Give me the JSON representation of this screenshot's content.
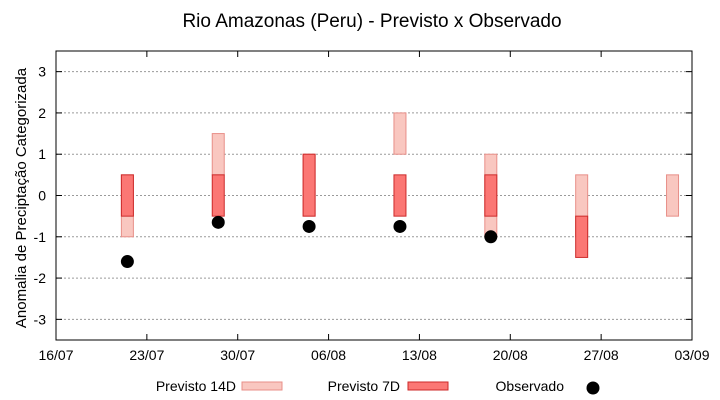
{
  "chart_data": {
    "type": "bar",
    "title": "Rio Amazonas (Peru) - Previsto x Observado",
    "ylabel": "Anomalia de Preciptação Categorizada",
    "xlabel": "",
    "ylim": [
      -3.5,
      3.5
    ],
    "yticks": [
      3,
      2,
      1,
      0,
      -1,
      -2,
      -3
    ],
    "xticks": [
      "16/07",
      "23/07",
      "30/07",
      "06/08",
      "13/08",
      "20/08",
      "27/08",
      "03/09"
    ],
    "grid": true,
    "legend_position": "bottom",
    "series": [
      {
        "name": "Previsto 14D",
        "kind": "range",
        "color_fill": "#f9c7c0",
        "color_stroke": "#e88f88",
        "points": [
          {
            "x": 5.5,
            "low": -1,
            "high": 0.5
          },
          {
            "x": 12.5,
            "low": 0.5,
            "high": 1.5
          },
          {
            "x": 19.5,
            "low": -0.5,
            "high": 1
          },
          {
            "x": 26.5,
            "low": 1,
            "high": 2
          },
          {
            "x": 33.5,
            "low": -1,
            "high": 1
          },
          {
            "x": 40.5,
            "low": -1,
            "high": 0.5
          },
          {
            "x": 47.5,
            "low": -0.5,
            "high": 0.5
          }
        ]
      },
      {
        "name": "Previsto 7D",
        "kind": "range",
        "color_fill": "#fb7774",
        "color_stroke": "#cc2a2a",
        "points": [
          {
            "x": 5.5,
            "low": -0.5,
            "high": 0.5
          },
          {
            "x": 12.5,
            "low": -0.5,
            "high": 0.5
          },
          {
            "x": 19.5,
            "low": -0.5,
            "high": 1
          },
          {
            "x": 26.5,
            "low": -0.5,
            "high": 0.5
          },
          {
            "x": 33.5,
            "low": -0.5,
            "high": 0.5
          },
          {
            "x": 40.5,
            "low": -1.5,
            "high": -0.5
          }
        ]
      },
      {
        "name": "Observado",
        "kind": "points",
        "color": "#000000",
        "points": [
          {
            "x": 5.5,
            "y": -1.6
          },
          {
            "x": 12.5,
            "y": -0.65
          },
          {
            "x": 19.5,
            "y": -0.75
          },
          {
            "x": 26.5,
            "y": -0.75
          },
          {
            "x": 33.5,
            "y": -1.0
          }
        ]
      }
    ]
  }
}
